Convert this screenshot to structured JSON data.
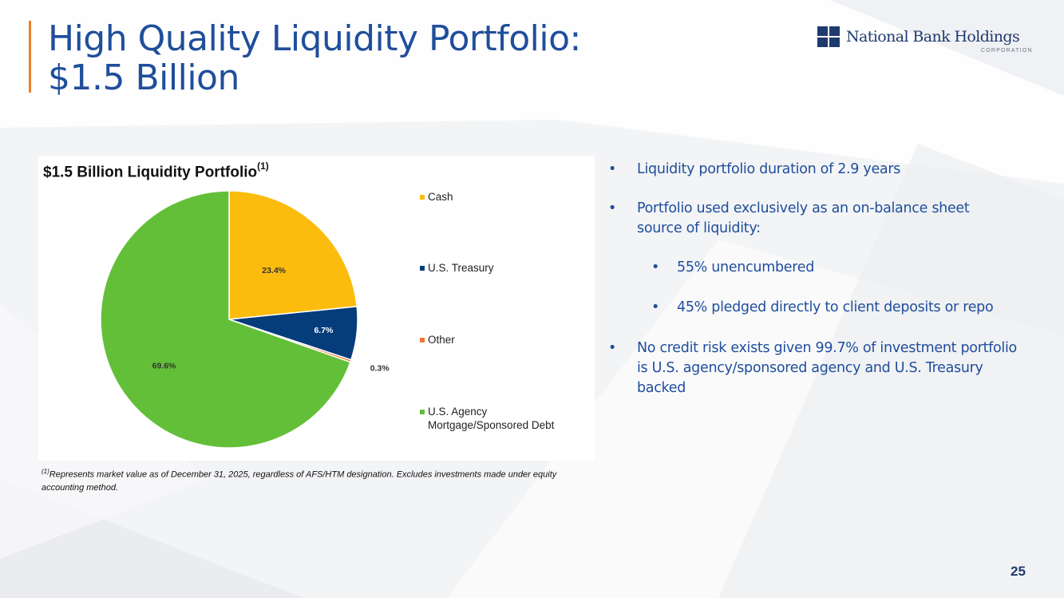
{
  "slide": {
    "title_line1": "High Quality Liquidity Portfolio:",
    "title_line2": "$1.5 Billion",
    "page_number": "25",
    "accent_color": "#e8822b",
    "title_color": "#1f4e9b"
  },
  "logo": {
    "name": "National Bank Holdings",
    "sub": "CORPORATION",
    "icon": "square-grid-icon"
  },
  "chart_panel": {
    "title": "$1.5 Billion Liquidity Portfolio",
    "title_sup": "(1)"
  },
  "chart_data": {
    "type": "pie",
    "title": "$1.5 Billion Liquidity Portfolio",
    "legend_position": "right",
    "slices": [
      {
        "label": "Cash",
        "value": 23.4,
        "display": "23.4%",
        "color": "#fbbc0e"
      },
      {
        "label": "U.S. Treasury",
        "value": 6.7,
        "display": "6.7%",
        "color": "#053c7b"
      },
      {
        "label": "Other",
        "value": 0.3,
        "display": "0.3%",
        "color": "#f07a34"
      },
      {
        "label": "U.S. Agency Mortgage/Sponsored Debt",
        "label_lines": [
          "U.S. Agency",
          "Mortgage/Sponsored Debt"
        ],
        "value": 69.6,
        "display": "69.6%",
        "color": "#63bf38"
      }
    ]
  },
  "footnote": {
    "sup": "(1)",
    "text": "Represents market value as of December 31, 2025, regardless of AFS/HTM designation. Excludes investments made under equity accounting method."
  },
  "bullets": [
    {
      "text": "Liquidity portfolio duration of 2.9 years"
    },
    {
      "text": "Portfolio used exclusively as an on-balance sheet source of liquidity:"
    },
    {
      "text": "55% unencumbered"
    },
    {
      "text": "45% pledged directly to client deposits or repo"
    },
    {
      "text": "No credit risk exists given 99.7% of investment portfolio is U.S. agency/sponsored agency and U.S. Treasury backed"
    }
  ],
  "bullet_glyph": "•"
}
